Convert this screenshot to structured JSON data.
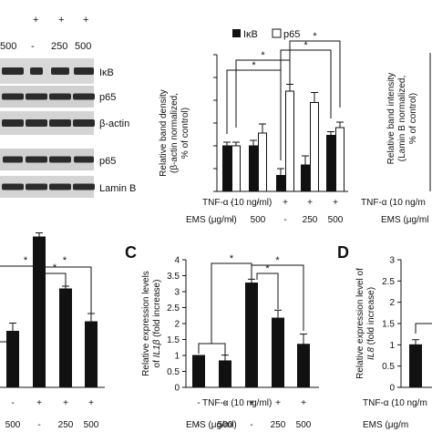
{
  "blot": {
    "header_signs": [
      "+",
      "+",
      "+"
    ],
    "header_doses": [
      "500",
      "-",
      "250",
      "500"
    ],
    "bands": [
      "IκB",
      "p65",
      "β-actin",
      "p65",
      "Lamin B"
    ]
  },
  "panel_labels": {
    "c": "C",
    "d": "D"
  },
  "row_labels": {
    "tnf": "TNF-α (10 ng/ml)",
    "ems": "EMS (μg/ml)"
  },
  "colors": {
    "black": "#111111",
    "white": "#ffffff",
    "blot_band": "#2b2b2b"
  },
  "chart_data": [
    {
      "id": "top_cytosol",
      "type": "bar",
      "ylabel": "Relative band density (β-actin normalized, % of control)",
      "ylim": [
        0,
        300
      ],
      "yticks": [
        0,
        50,
        100,
        150,
        200,
        250,
        300
      ],
      "legend": [
        "IκB",
        "p65"
      ],
      "tnf_row": [
        "-",
        "-",
        "+",
        "+",
        "+"
      ],
      "ems_row": [
        "-",
        "500",
        "-",
        "250",
        "500"
      ],
      "series": [
        {
          "name": "IκB",
          "values": [
            100,
            100,
            35,
            58,
            123
          ],
          "errors": [
            8,
            12,
            15,
            20,
            8
          ],
          "fill": "#111111"
        },
        {
          "name": "p65",
          "values": [
            100,
            128,
            220,
            195,
            140
          ],
          "errors": [
            8,
            20,
            15,
            22,
            12
          ],
          "fill": "#ffffff"
        }
      ],
      "significance": [
        "*",
        "*",
        "*",
        "*"
      ]
    },
    {
      "id": "top_nuclear",
      "type": "bar",
      "ylabel": "Relative band intensity (Lamin B normalized, % of control)",
      "tnf_row_label": "TNF-α (10 ng/m",
      "ems_row_label": "EMS (μg/ml"
    },
    {
      "id": "panel_b",
      "type": "bar",
      "tnf_row": [
        "-",
        "+",
        "+",
        "+"
      ],
      "ems_row": [
        "500",
        "-",
        "250",
        "500"
      ],
      "values": [
        2.05,
        5.5,
        3.6,
        2.4
      ],
      "errors": [
        0.3,
        0.15,
        0.1,
        0.3
      ],
      "significance": [
        "*",
        "*",
        "*"
      ]
    },
    {
      "id": "panel_c",
      "type": "bar",
      "ylabel": "Relative expression levels of IL1β (fold increase)",
      "ylim": [
        0,
        4
      ],
      "yticks": [
        "0",
        "0.5",
        "1",
        "1.5",
        "2",
        "2.5",
        "3",
        "3.5",
        "4"
      ],
      "tnf_row": [
        "-",
        "-",
        "+",
        "+",
        "+"
      ],
      "ems_row": [
        "-",
        "500",
        "-",
        "250",
        "500"
      ],
      "values": [
        1.0,
        0.83,
        3.27,
        2.17,
        1.35
      ],
      "errors": [
        0.0,
        0.18,
        0.12,
        0.25,
        0.32
      ],
      "significance": [
        "*",
        "*",
        "*"
      ]
    },
    {
      "id": "panel_d",
      "type": "bar",
      "ylabel": "Relative expression level of IL8 (fold increase)",
      "ylim": [
        0,
        3
      ],
      "yticks": [
        "0",
        "0.5",
        "1",
        "1.5",
        "2",
        "2.5",
        "3"
      ],
      "tnf_row_label": "TNF-α (10 ng/m",
      "ems_row_label": "EMS (μg/m",
      "values": [
        1.0
      ],
      "errors": [
        0.12
      ]
    }
  ]
}
